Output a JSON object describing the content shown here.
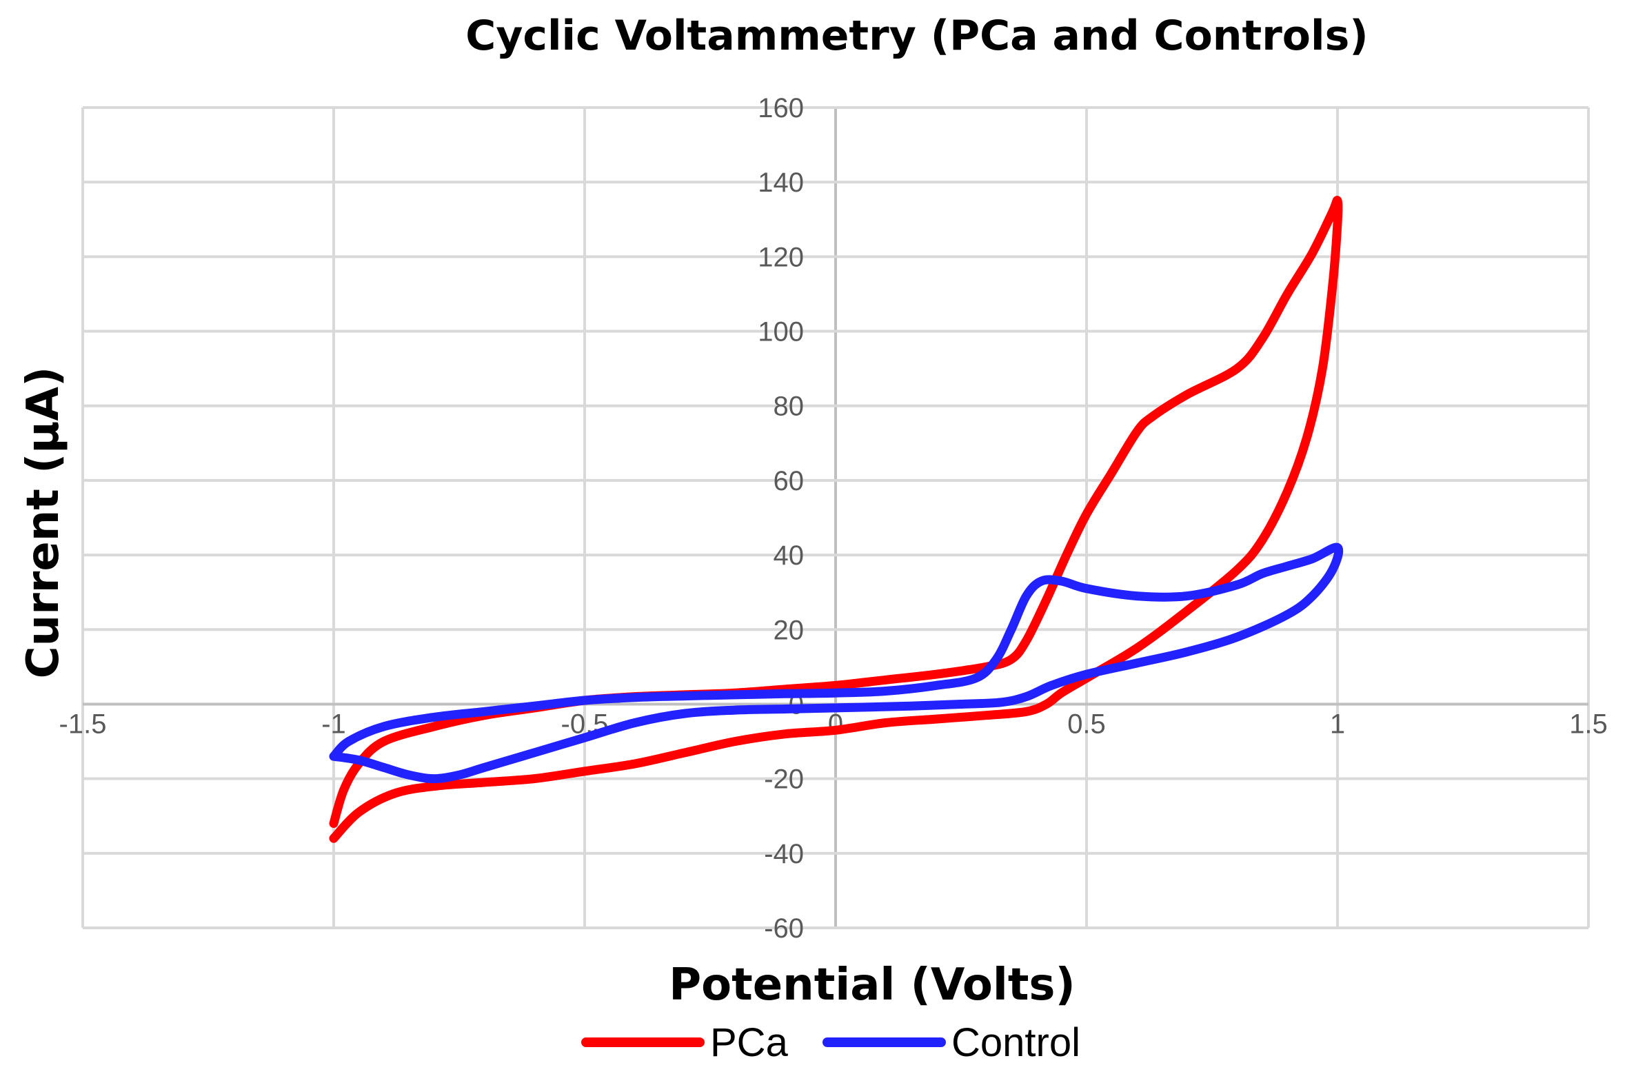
{
  "chart_data": {
    "type": "scatter",
    "title": "Cyclic Voltammetry (PCa and Controls)",
    "xlabel": "Potential (Volts)",
    "ylabel": "Current (μA)",
    "xlim": [
      -1.5,
      1.5
    ],
    "ylim": [
      -60,
      160
    ],
    "xticks": [
      -1.5,
      -1,
      -0.5,
      0,
      0.5,
      1,
      1.5
    ],
    "xtick_labels": [
      "-1.5",
      "-1",
      "-0.5",
      "0",
      "0.5",
      "1",
      "1.5"
    ],
    "yticks": [
      -60,
      -40,
      -20,
      0,
      20,
      40,
      60,
      80,
      100,
      120,
      140,
      160
    ],
    "ytick_labels": [
      "-60",
      "-40",
      "-20",
      "0",
      "20",
      "40",
      "60",
      "80",
      "100",
      "120",
      "140",
      "160"
    ],
    "grid": true,
    "legend_position": "bottom",
    "series": [
      {
        "name": "PCa",
        "color": "#ff0000",
        "points": [
          [
            -1.0,
            -32
          ],
          [
            -0.98,
            -23
          ],
          [
            -0.95,
            -16
          ],
          [
            -0.9,
            -10
          ],
          [
            -0.8,
            -6
          ],
          [
            -0.7,
            -3
          ],
          [
            -0.6,
            -1
          ],
          [
            -0.5,
            1
          ],
          [
            -0.4,
            2
          ],
          [
            -0.3,
            2.5
          ],
          [
            -0.2,
            3
          ],
          [
            -0.1,
            4
          ],
          [
            0.0,
            5
          ],
          [
            0.1,
            6.5
          ],
          [
            0.2,
            8
          ],
          [
            0.3,
            10
          ],
          [
            0.35,
            12
          ],
          [
            0.38,
            17
          ],
          [
            0.42,
            28
          ],
          [
            0.46,
            40
          ],
          [
            0.5,
            51
          ],
          [
            0.55,
            62
          ],
          [
            0.6,
            73
          ],
          [
            0.63,
            77
          ],
          [
            0.7,
            83
          ],
          [
            0.8,
            90
          ],
          [
            0.85,
            98
          ],
          [
            0.9,
            110
          ],
          [
            0.95,
            121
          ],
          [
            0.99,
            132
          ],
          [
            1.0,
            135
          ],
          [
            1.0,
            129
          ],
          [
            0.99,
            112
          ],
          [
            0.97,
            90
          ],
          [
            0.94,
            72
          ],
          [
            0.9,
            57
          ],
          [
            0.85,
            44
          ],
          [
            0.8,
            36
          ],
          [
            0.7,
            25
          ],
          [
            0.6,
            15
          ],
          [
            0.5,
            7
          ],
          [
            0.45,
            3
          ],
          [
            0.42,
            0
          ],
          [
            0.38,
            -2
          ],
          [
            0.3,
            -3
          ],
          [
            0.2,
            -4
          ],
          [
            0.1,
            -5
          ],
          [
            0.0,
            -7
          ],
          [
            -0.1,
            -8
          ],
          [
            -0.2,
            -10
          ],
          [
            -0.3,
            -13
          ],
          [
            -0.4,
            -16
          ],
          [
            -0.5,
            -18
          ],
          [
            -0.6,
            -20
          ],
          [
            -0.7,
            -21
          ],
          [
            -0.8,
            -22
          ],
          [
            -0.88,
            -24
          ],
          [
            -0.95,
            -29
          ],
          [
            -1.0,
            -36
          ]
        ]
      },
      {
        "name": "Control",
        "color": "#2222ff",
        "points": [
          [
            -1.0,
            -14
          ],
          [
            -0.97,
            -10
          ],
          [
            -0.9,
            -6
          ],
          [
            -0.8,
            -3.5
          ],
          [
            -0.7,
            -2
          ],
          [
            -0.6,
            -0.5
          ],
          [
            -0.5,
            1
          ],
          [
            -0.4,
            1.8
          ],
          [
            -0.3,
            2.2
          ],
          [
            -0.2,
            2.5
          ],
          [
            -0.1,
            2.8
          ],
          [
            0.0,
            3
          ],
          [
            0.1,
            3.5
          ],
          [
            0.2,
            5
          ],
          [
            0.28,
            7
          ],
          [
            0.32,
            12
          ],
          [
            0.35,
            20
          ],
          [
            0.38,
            29
          ],
          [
            0.41,
            33
          ],
          [
            0.45,
            33
          ],
          [
            0.5,
            31
          ],
          [
            0.6,
            29
          ],
          [
            0.7,
            29
          ],
          [
            0.8,
            32
          ],
          [
            0.85,
            35
          ],
          [
            0.9,
            37
          ],
          [
            0.95,
            39
          ],
          [
            1.0,
            42
          ],
          [
            0.99,
            36
          ],
          [
            0.95,
            29
          ],
          [
            0.9,
            24
          ],
          [
            0.8,
            18
          ],
          [
            0.7,
            14
          ],
          [
            0.6,
            11
          ],
          [
            0.5,
            8
          ],
          [
            0.43,
            5
          ],
          [
            0.38,
            2
          ],
          [
            0.33,
            0.5
          ],
          [
            0.25,
            0
          ],
          [
            0.15,
            -0.5
          ],
          [
            0.0,
            -1
          ],
          [
            -0.1,
            -1.3
          ],
          [
            -0.2,
            -1.6
          ],
          [
            -0.3,
            -2.5
          ],
          [
            -0.4,
            -5
          ],
          [
            -0.5,
            -9
          ],
          [
            -0.6,
            -13
          ],
          [
            -0.7,
            -17
          ],
          [
            -0.75,
            -19
          ],
          [
            -0.8,
            -20
          ],
          [
            -0.85,
            -19
          ],
          [
            -0.9,
            -17
          ],
          [
            -0.95,
            -15
          ],
          [
            -1.0,
            -14
          ]
        ]
      }
    ]
  }
}
